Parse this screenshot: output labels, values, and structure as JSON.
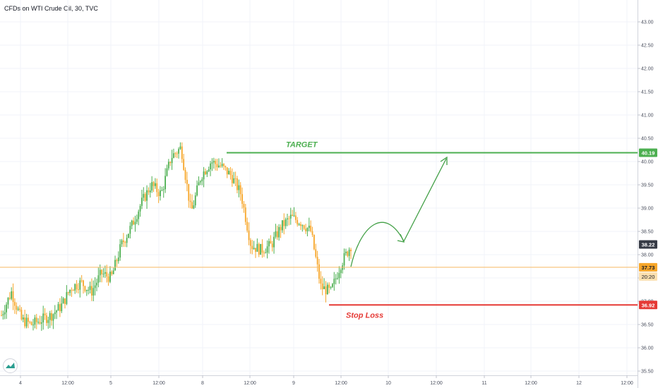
{
  "header": {
    "title": "CFDs on WTI Crude Oil, 30, TVC"
  },
  "logo": {
    "icon": "tradingview-logo-icon"
  },
  "chart_data": {
    "type": "candlestick",
    "title": "CFDs on WTI Crude Oil, 30, TVC",
    "y_axis": {
      "ticks": [
        "35.50",
        "36.00",
        "36.50",
        "37.00",
        "37.50",
        "38.00",
        "38.50",
        "39.00",
        "39.50",
        "40.00",
        "40.50",
        "41.00",
        "41.50",
        "42.00",
        "42.50",
        "43.00"
      ],
      "range": [
        35.4,
        43.1
      ]
    },
    "x_axis": {
      "ticks": [
        "4",
        "12:00",
        "5",
        "12:00",
        "8",
        "12:00",
        "9",
        "12:00",
        "10",
        "12:00",
        "11",
        "12:00",
        "12",
        "12:00"
      ]
    },
    "colors": {
      "up": "#26a69a",
      "down": "#ef9a1a",
      "up_candle": "#4caf50",
      "down_candle": "#f7a629",
      "target": "#4caf50",
      "stop": "#e53935",
      "current_line": "#f7b962"
    },
    "price_path": [
      36.7,
      37.2,
      36.6,
      36.5,
      36.6,
      36.7,
      36.9,
      37.3,
      37.4,
      37.2,
      37.6,
      37.5,
      38.2,
      38.6,
      39.1,
      39.5,
      39.3,
      40.1,
      40.3,
      38.9,
      39.7,
      40.0,
      39.9,
      39.7,
      39.3,
      38.2,
      38.1,
      38.2,
      38.6,
      38.8,
      38.7,
      38.5,
      37.3,
      37.2,
      37.8,
      38.2
    ],
    "annotations": {
      "target": {
        "label": "TARGET",
        "value": 40.19,
        "price_label": "40.19"
      },
      "stop_loss": {
        "label": "Stop Loss",
        "value": 36.92,
        "price_label": "36.92"
      },
      "current_price": {
        "value": 37.73,
        "price_label": "37.73",
        "time_label": "20:20"
      },
      "last_price": {
        "value": 38.22,
        "price_label": "38.22"
      },
      "projection": [
        [
          38.22,
          "up"
        ],
        [
          38.82,
          "peak"
        ],
        [
          38.3,
          "dip"
        ],
        [
          40.1,
          "target"
        ]
      ]
    }
  }
}
